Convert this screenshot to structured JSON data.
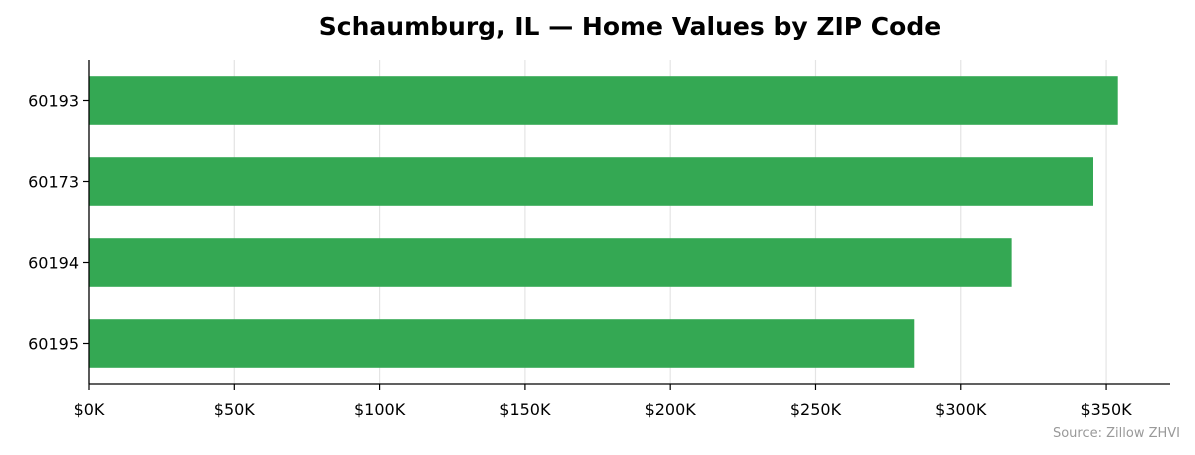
{
  "chart_data": {
    "type": "bar",
    "orientation": "horizontal",
    "title": "Schaumburg, IL — Home Values by ZIP Code",
    "xlabel": "",
    "ylabel": "",
    "categories": [
      "60193",
      "60173",
      "60194",
      "60195"
    ],
    "values": [
      354000,
      345500,
      317500,
      284000
    ],
    "xlim": [
      0,
      372000
    ],
    "x_ticks": [
      0,
      50000,
      100000,
      150000,
      200000,
      250000,
      300000,
      350000
    ],
    "x_tick_labels": [
      "$0K",
      "$50K",
      "$100K",
      "$150K",
      "$200K",
      "$250K",
      "$300K",
      "$350K"
    ],
    "grid": "x",
    "legend": "none",
    "bar_color": "#34a853",
    "note": "Source: Zillow ZHVI"
  }
}
